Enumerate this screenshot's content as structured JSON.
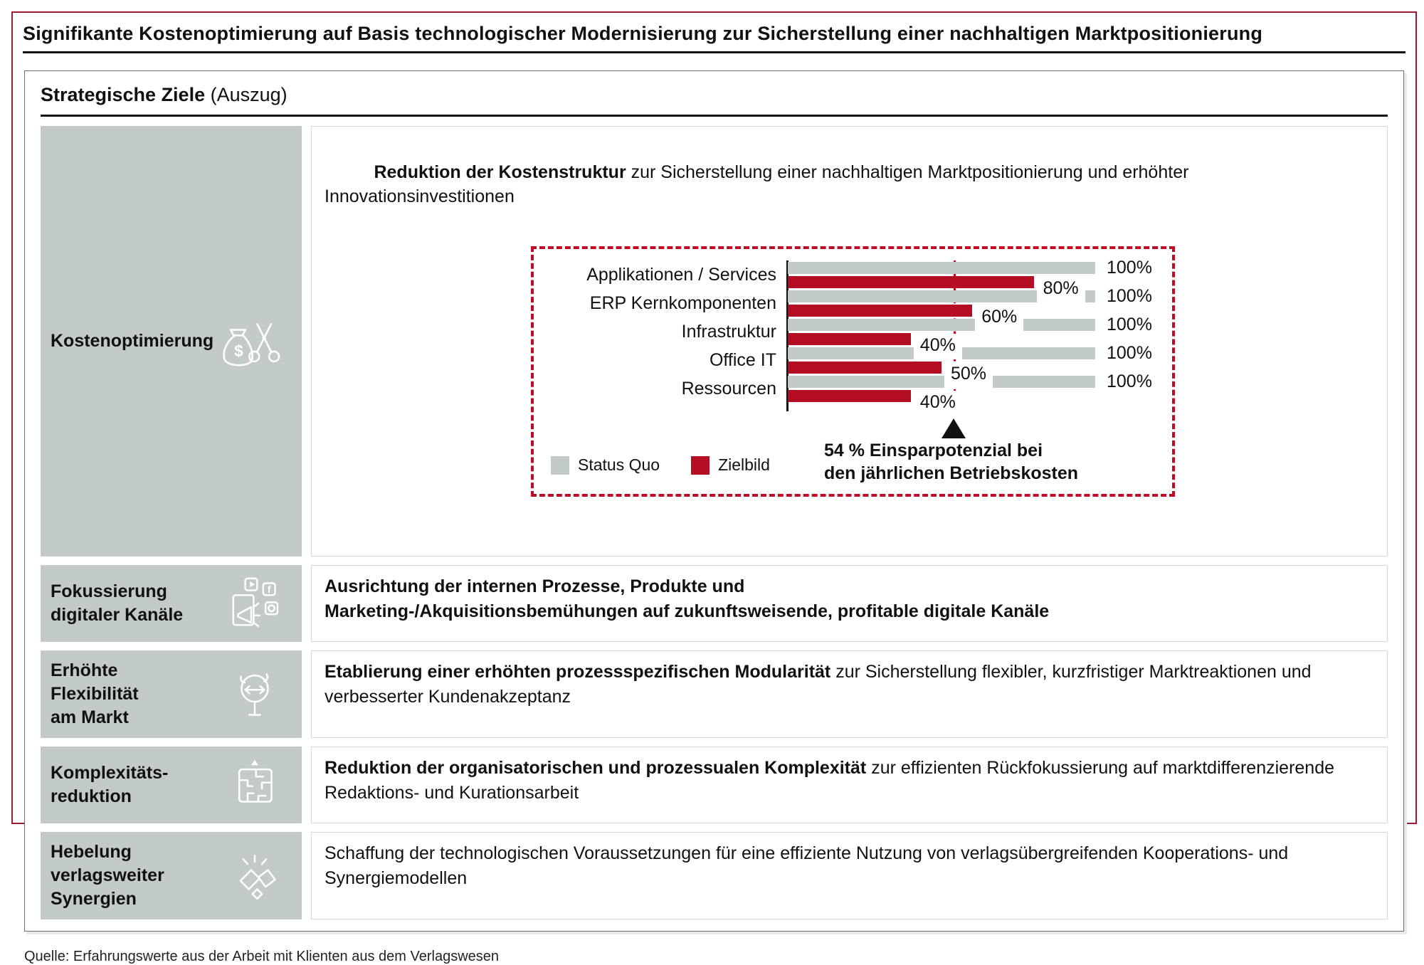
{
  "page": {
    "title": "Signifikante Kostenoptimierung auf Basis technologischer Modernisierung zur Sicherstellung einer nachhaltigen Marktpositionierung",
    "footer_source": "Quelle: Erfahrungswerte aus der Arbeit mit Klienten aus dem Verlagswesen"
  },
  "panel": {
    "heading_bold": "Strategische Ziele",
    "heading_suffix": " (Auszug)"
  },
  "rows": [
    {
      "label": "Kostenoptimierung",
      "icon": "money-bag-scissors-icon",
      "bold": "Reduktion der Kostenstruktur",
      "normal": " zur Sicherstellung einer nachhaltigen Marktpositionierung und erhöhter Innovationsinvestitionen"
    },
    {
      "label": "Fokussierung\ndigitaler Kanäle",
      "icon": "digital-channels-icon",
      "bold": "Ausrichtung der internen Prozesse, Produkte und\nMarketing-/Akquisitionsbemühungen auf zukunftsweisende, profitable digitale Kanäle",
      "normal": ""
    },
    {
      "label": "Erhöhte\nFlexibilität\nam Markt",
      "icon": "market-flexibility-icon",
      "bold": "Etablierung einer erhöhten prozessspezifischen Modularität",
      "normal": " zur Sicherstellung flexibler, kurzfristiger Marktreaktionen und verbesserter Kundenakzeptanz"
    },
    {
      "label": "Komplexitäts-\nreduktion",
      "icon": "maze-icon",
      "bold": "Reduktion der organisatorischen und prozessualen Komplexität",
      "normal": " zur effizienten Rückfokussierung auf marktdifferenzierende Redaktions- und Kurationsarbeit"
    },
    {
      "label": "Hebelung\nverlagsweiter\nSynergien",
      "icon": "synergy-fistbump-icon",
      "bold": "",
      "normal": "Schaffung der technologischen Voraussetzungen für eine effiziente Nutzung von verlagsübergreifenden Kooperations- und Synergiemodellen"
    }
  ],
  "chart_data": {
    "type": "bar",
    "orientation": "horizontal",
    "categories": [
      "Applikationen / Services",
      "ERP Kernkomponenten",
      "Infrastruktur",
      "Office IT",
      "Ressourcen"
    ],
    "series": [
      {
        "name": "Status Quo",
        "color": "#C3CBC9",
        "values": [
          100,
          100,
          100,
          100,
          100
        ]
      },
      {
        "name": "Zielbild",
        "color": "#B50D23",
        "values": [
          80,
          60,
          40,
          50,
          40
        ]
      }
    ],
    "value_suffix": "%",
    "xlim": [
      0,
      100
    ],
    "target_line_value": 54,
    "annotation": "54 % Einsparpotenzial bei\nden jährlichen Betriebskosten",
    "legend_position": "bottom-left",
    "grid": false
  },
  "colors": {
    "accent_red": "#B50D23",
    "dashed_red": "#BE0B26",
    "frame_red": "#9C1B2E",
    "cell_gray": "#C3CBC9",
    "text": "#111111"
  }
}
